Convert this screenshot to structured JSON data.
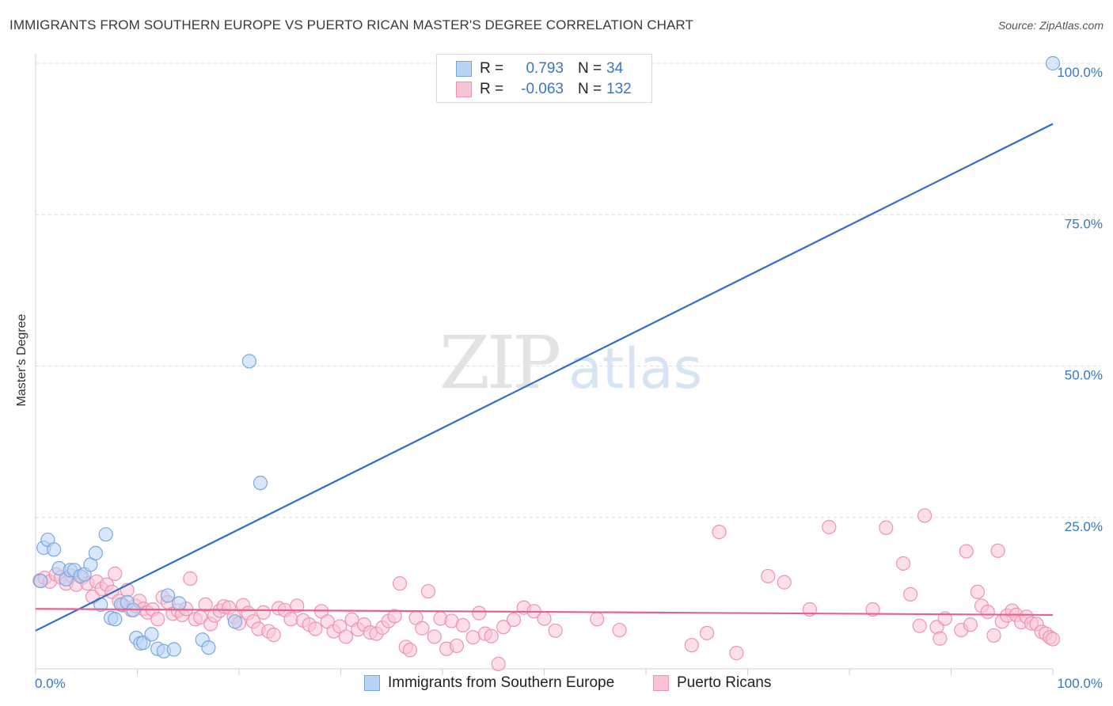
{
  "title": "IMMIGRANTS FROM SOUTHERN EUROPE VS PUERTO RICAN MASTER'S DEGREE CORRELATION CHART",
  "source": "Source: ZipAtlas.com",
  "watermark": {
    "zip": "ZIP",
    "atlas": "atlas"
  },
  "legend": {
    "rows": [
      {
        "r_label": "R =",
        "r_value": "0.793",
        "n_label": "N =",
        "n_value": "34",
        "fill": "#b9d3f5",
        "stroke": "#7aa7e0"
      },
      {
        "r_label": "R =",
        "r_value": "-0.063",
        "n_label": "N =",
        "n_value": "132",
        "fill": "#f9c4d5",
        "stroke": "#ee93b1"
      }
    ]
  },
  "bottom_legend": [
    {
      "label": "Immigrants from Southern Europe",
      "fill": "#b9d3f5",
      "stroke": "#7aa7e0"
    },
    {
      "label": "Puerto Ricans",
      "fill": "#f9c4d5",
      "stroke": "#ee93b1"
    }
  ],
  "chart_data": {
    "type": "scatter",
    "title": "IMMIGRANTS FROM SOUTHERN EUROPE VS PUERTO RICAN MASTER'S DEGREE CORRELATION CHART",
    "xlabel": "",
    "ylabel": "Master's Degree",
    "xlim": [
      0,
      100
    ],
    "ylim": [
      0,
      100
    ],
    "x_tick_labels": [
      {
        "value": 0,
        "label": "0.0%"
      },
      {
        "value": 100,
        "label": "100.0%"
      }
    ],
    "y_tick_labels": [
      {
        "value": 25,
        "label": "25.0%"
      },
      {
        "value": 50,
        "label": "50.0%"
      },
      {
        "value": 75,
        "label": "75.0%"
      },
      {
        "value": 100,
        "label": "100.0%"
      }
    ],
    "x_minor_ticks": [
      0,
      10,
      20,
      30,
      40,
      50,
      60,
      70,
      80,
      90,
      100
    ],
    "series": [
      {
        "name": "Immigrants from Southern Europe",
        "color": "#7aa7e0",
        "fill": "#b9d3f5",
        "trend_color": "#2e6fcc",
        "trend": {
          "x0": 0,
          "y0": 6.3,
          "x1": 100,
          "y1": 90
        },
        "points": [
          [
            0.5,
            14.5
          ],
          [
            0.8,
            20.0
          ],
          [
            1.2,
            21.3
          ],
          [
            1.8,
            19.7
          ],
          [
            2.3,
            16.6
          ],
          [
            3.0,
            14.8
          ],
          [
            3.4,
            16.3
          ],
          [
            3.8,
            16.3
          ],
          [
            4.4,
            15.3
          ],
          [
            4.8,
            15.6
          ],
          [
            5.4,
            17.2
          ],
          [
            5.9,
            19.1
          ],
          [
            6.4,
            10.6
          ],
          [
            6.9,
            22.2
          ],
          [
            7.4,
            8.4
          ],
          [
            7.8,
            8.2
          ],
          [
            8.4,
            10.6
          ],
          [
            9.0,
            11.0
          ],
          [
            9.6,
            9.7
          ],
          [
            9.9,
            5.1
          ],
          [
            10.3,
            4.2
          ],
          [
            10.6,
            4.3
          ],
          [
            11.4,
            5.7
          ],
          [
            12.0,
            3.3
          ],
          [
            12.6,
            2.9
          ],
          [
            13.0,
            12.1
          ],
          [
            13.6,
            3.2
          ],
          [
            14.1,
            10.8
          ],
          [
            16.4,
            4.8
          ],
          [
            17.0,
            3.5
          ],
          [
            19.6,
            7.8
          ],
          [
            21.0,
            50.8
          ],
          [
            22.1,
            30.7
          ],
          [
            100,
            100
          ]
        ]
      },
      {
        "name": "Puerto Ricans",
        "color": "#ee93b1",
        "fill": "#f9c4d5",
        "trend_color": "#e3638f",
        "trend": {
          "x0": 0,
          "y0": 9.9,
          "x1": 100,
          "y1": 8.9
        },
        "points": [
          [
            0.4,
            14.6
          ],
          [
            0.9,
            15.0
          ],
          [
            1.4,
            14.4
          ],
          [
            2.0,
            15.6
          ],
          [
            2.5,
            15.1
          ],
          [
            3.0,
            14.1
          ],
          [
            3.5,
            15.4
          ],
          [
            4.0,
            13.9
          ],
          [
            4.6,
            15.1
          ],
          [
            5.1,
            14.1
          ],
          [
            5.6,
            11.9
          ],
          [
            6.0,
            14.4
          ],
          [
            6.5,
            13.2
          ],
          [
            7.0,
            13.9
          ],
          [
            7.5,
            12.7
          ],
          [
            7.8,
            15.7
          ],
          [
            8.2,
            11.2
          ],
          [
            8.6,
            10.5
          ],
          [
            9.0,
            13.0
          ],
          [
            9.4,
            9.7
          ],
          [
            9.8,
            10.4
          ],
          [
            10.2,
            11.2
          ],
          [
            10.6,
            9.9
          ],
          [
            11.0,
            9.3
          ],
          [
            11.5,
            9.8
          ],
          [
            12.0,
            8.2
          ],
          [
            12.5,
            11.8
          ],
          [
            13.0,
            11.0
          ],
          [
            13.5,
            9.1
          ],
          [
            14.0,
            9.6
          ],
          [
            14.4,
            8.9
          ],
          [
            14.8,
            9.9
          ],
          [
            15.2,
            14.9
          ],
          [
            15.7,
            8.2
          ],
          [
            16.2,
            8.5
          ],
          [
            16.7,
            10.6
          ],
          [
            17.2,
            7.4
          ],
          [
            17.6,
            8.8
          ],
          [
            18.1,
            9.6
          ],
          [
            18.5,
            10.3
          ],
          [
            19.0,
            10.1
          ],
          [
            19.5,
            8.6
          ],
          [
            20.0,
            7.5
          ],
          [
            20.4,
            10.5
          ],
          [
            20.9,
            9.2
          ],
          [
            21.4,
            7.8
          ],
          [
            21.9,
            6.6
          ],
          [
            22.4,
            9.3
          ],
          [
            22.9,
            6.2
          ],
          [
            23.4,
            5.6
          ],
          [
            23.9,
            10.0
          ],
          [
            24.5,
            9.7
          ],
          [
            25.1,
            8.2
          ],
          [
            25.7,
            10.4
          ],
          [
            26.3,
            8.0
          ],
          [
            26.9,
            7.3
          ],
          [
            27.5,
            6.6
          ],
          [
            28.1,
            9.5
          ],
          [
            28.7,
            7.8
          ],
          [
            29.3,
            6.2
          ],
          [
            29.9,
            7.0
          ],
          [
            30.5,
            5.3
          ],
          [
            31.1,
            8.1
          ],
          [
            31.7,
            6.5
          ],
          [
            32.3,
            7.3
          ],
          [
            32.9,
            6.0
          ],
          [
            33.5,
            5.8
          ],
          [
            34.1,
            6.8
          ],
          [
            34.7,
            7.9
          ],
          [
            35.3,
            8.7
          ],
          [
            35.8,
            14.1
          ],
          [
            36.4,
            3.6
          ],
          [
            36.8,
            3.1
          ],
          [
            37.4,
            8.4
          ],
          [
            38.0,
            6.7
          ],
          [
            38.6,
            12.8
          ],
          [
            39.2,
            5.3
          ],
          [
            39.8,
            8.3
          ],
          [
            40.4,
            3.3
          ],
          [
            40.9,
            7.9
          ],
          [
            41.4,
            3.8
          ],
          [
            42.0,
            7.2
          ],
          [
            43.0,
            5.2
          ],
          [
            43.6,
            9.2
          ],
          [
            44.2,
            5.8
          ],
          [
            44.8,
            5.4
          ],
          [
            45.5,
            0.8
          ],
          [
            46.0,
            6.9
          ],
          [
            47.0,
            8.1
          ],
          [
            48.0,
            10.1
          ],
          [
            49.0,
            9.5
          ],
          [
            50.0,
            8.3
          ],
          [
            51.1,
            6.3
          ],
          [
            55.2,
            8.2
          ],
          [
            57.4,
            6.4
          ],
          [
            64.5,
            3.9
          ],
          [
            66.0,
            5.9
          ],
          [
            67.2,
            22.6
          ],
          [
            68.9,
            2.6
          ],
          [
            72.0,
            15.3
          ],
          [
            73.6,
            14.3
          ],
          [
            76.1,
            9.8
          ],
          [
            78.0,
            23.4
          ],
          [
            82.3,
            9.8
          ],
          [
            83.6,
            23.3
          ],
          [
            85.3,
            17.4
          ],
          [
            86.0,
            12.3
          ],
          [
            86.9,
            7.1
          ],
          [
            87.4,
            25.3
          ],
          [
            88.6,
            6.9
          ],
          [
            88.9,
            5.0
          ],
          [
            89.4,
            8.3
          ],
          [
            91.0,
            6.4
          ],
          [
            91.5,
            19.4
          ],
          [
            91.9,
            7.3
          ],
          [
            92.6,
            12.7
          ],
          [
            93.0,
            10.4
          ],
          [
            93.6,
            9.4
          ],
          [
            94.2,
            5.5
          ],
          [
            94.6,
            19.5
          ],
          [
            95.0,
            7.8
          ],
          [
            95.5,
            8.8
          ],
          [
            96.0,
            9.6
          ],
          [
            96.4,
            8.9
          ],
          [
            96.9,
            7.7
          ],
          [
            97.4,
            8.6
          ],
          [
            97.9,
            7.5
          ],
          [
            98.4,
            7.4
          ],
          [
            98.9,
            6.1
          ],
          [
            99.3,
            5.8
          ],
          [
            99.7,
            5.2
          ],
          [
            100,
            4.9
          ]
        ]
      }
    ]
  }
}
